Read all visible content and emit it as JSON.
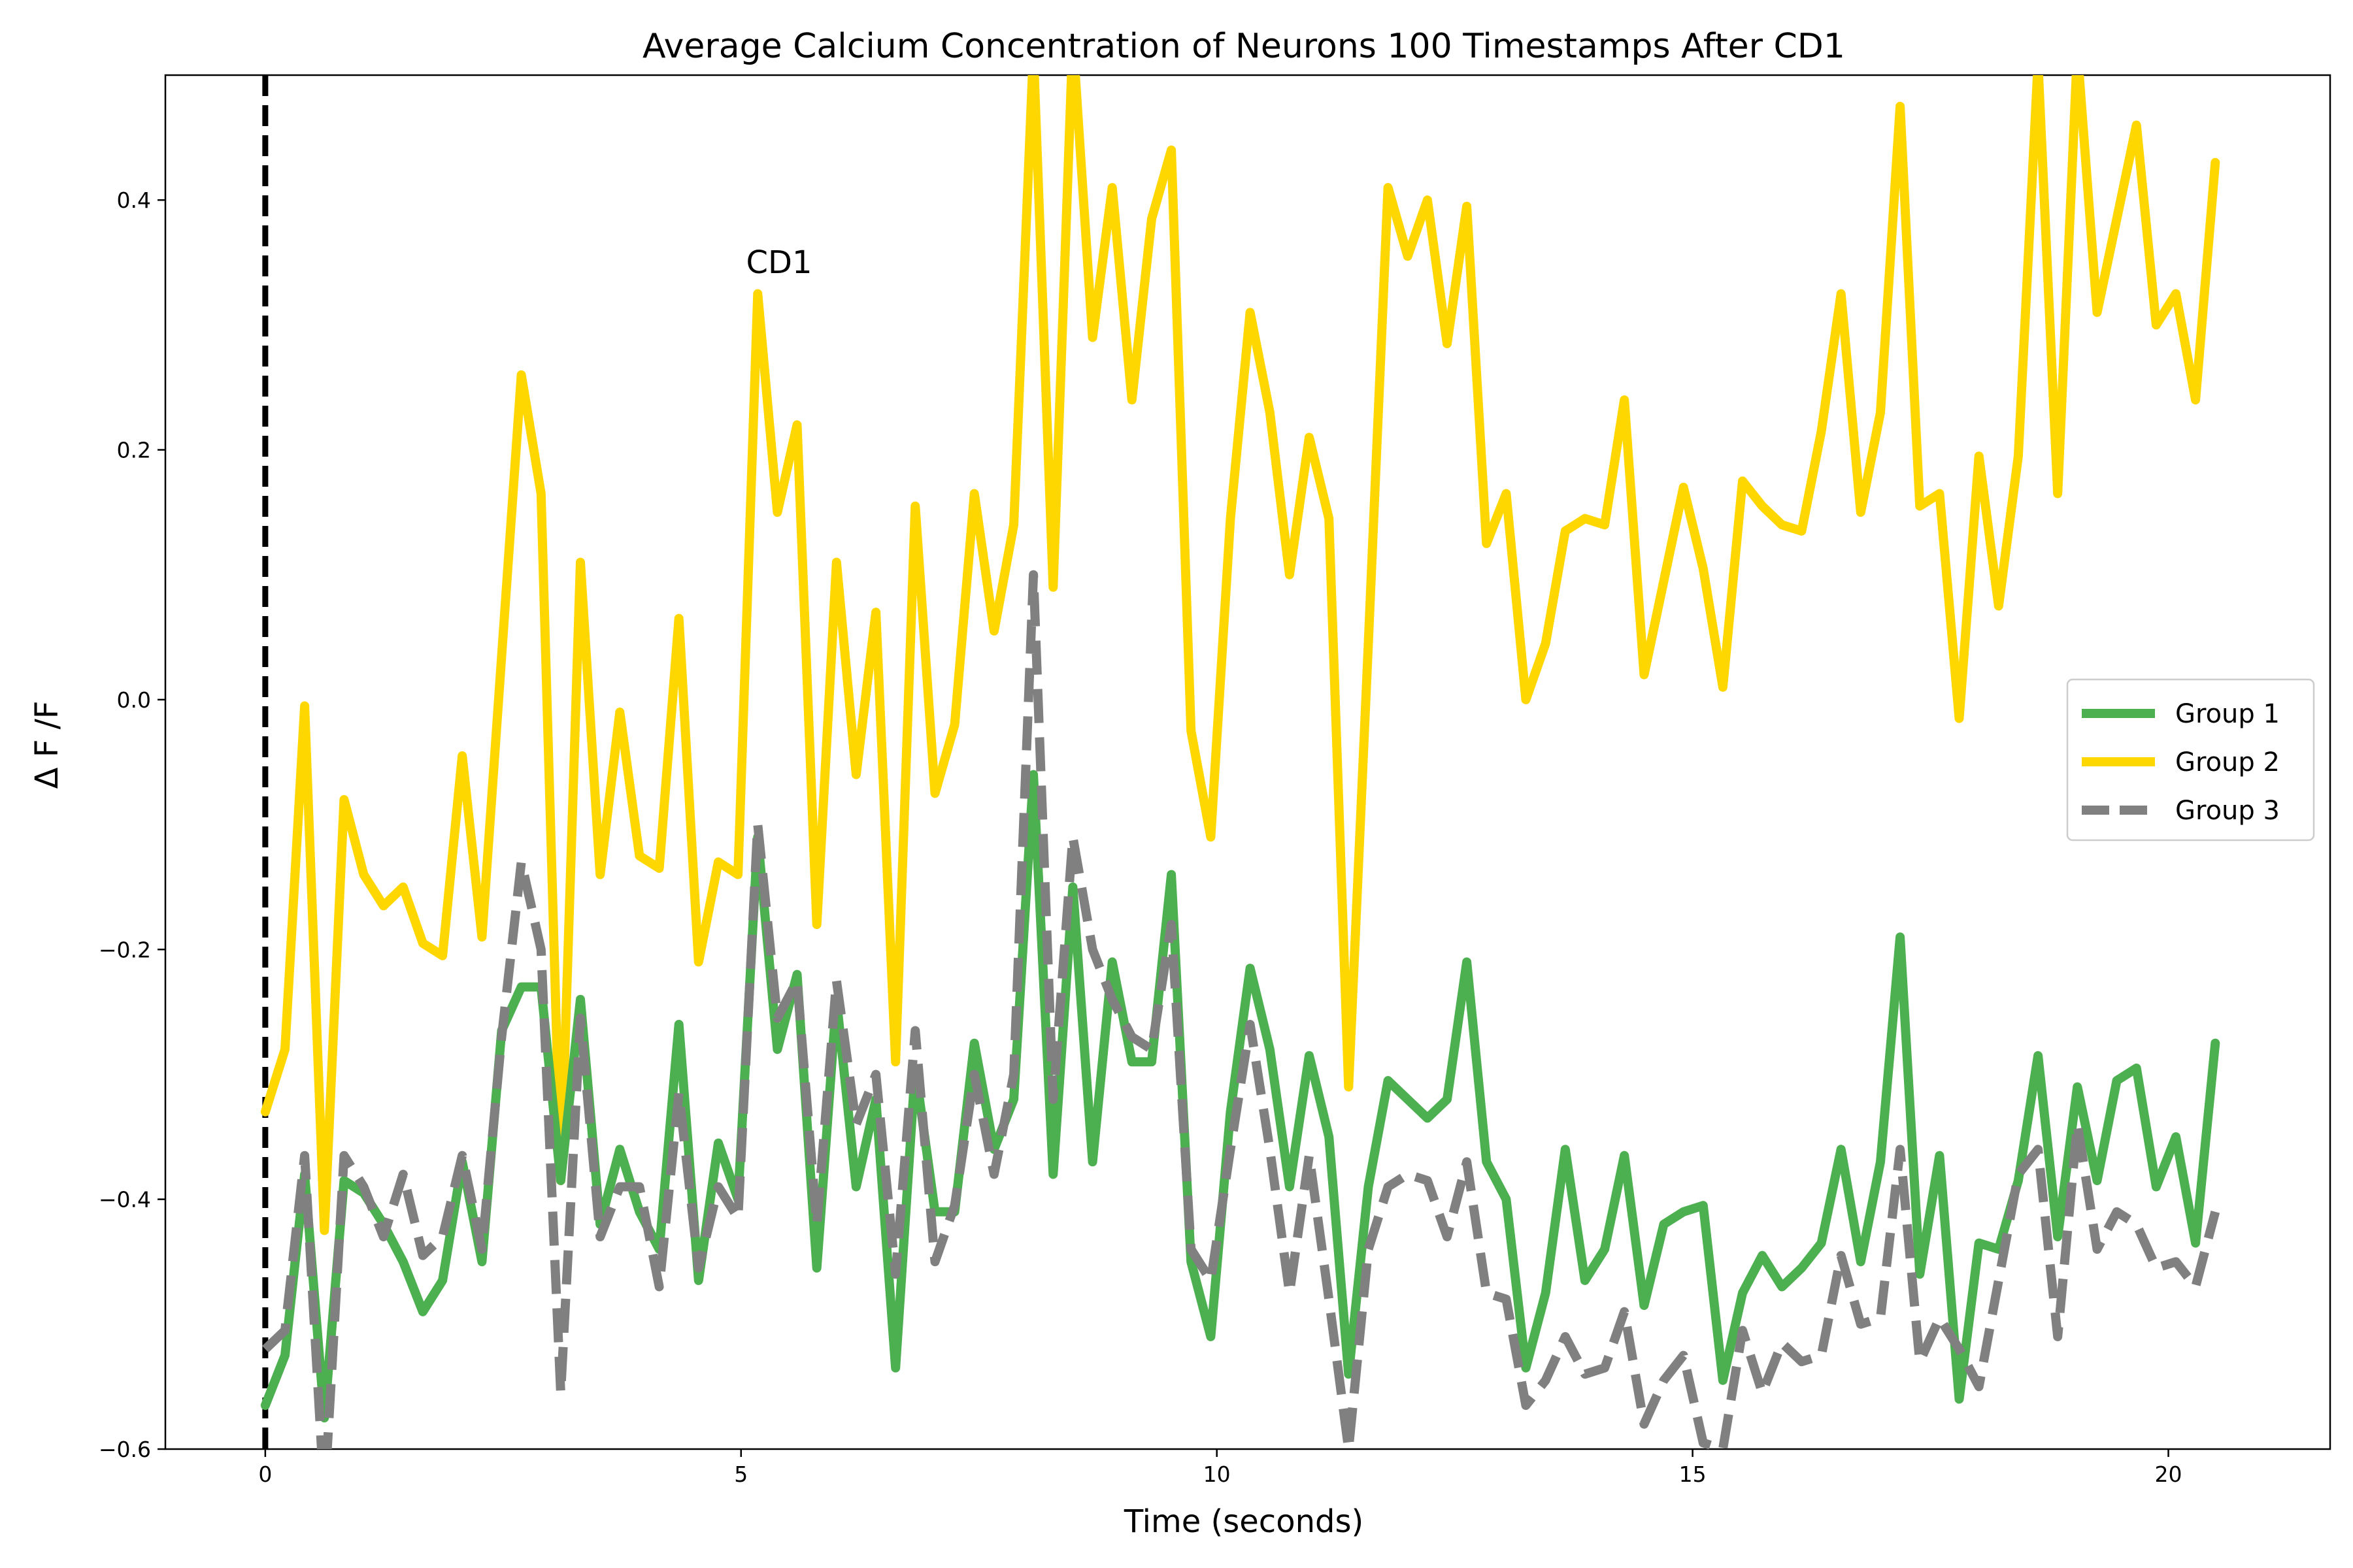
{
  "chart_data": {
    "type": "line",
    "title": "Average Calcium Concentration of Neurons 100 Timestamps After CD1",
    "xlabel": "Time (seconds)",
    "ylabel": "Δ F /F",
    "xlim": [
      -1.05,
      21.7
    ],
    "ylim": [
      -0.6,
      0.5
    ],
    "xticks": [
      0,
      5,
      10,
      15,
      20
    ],
    "xtick_labels": [
      "0",
      "5",
      "10",
      "15",
      "20"
    ],
    "yticks": [
      -0.6,
      -0.4,
      -0.2,
      0.0,
      0.2,
      0.4
    ],
    "ytick_labels": [
      "−0.6",
      "−0.4",
      "−0.2",
      "0.0",
      "0.2",
      "0.4"
    ],
    "grid": false,
    "legend_position": "center-right",
    "vline": {
      "x": 0,
      "style": "dashed",
      "color": "#000000"
    },
    "annotation": {
      "text": "CD1",
      "x": 5.4,
      "y": 0.35
    },
    "x": [
      0.0,
      0.207,
      0.414,
      0.621,
      0.828,
      1.035,
      1.242,
      1.449,
      1.656,
      1.863,
      2.07,
      2.277,
      2.484,
      2.691,
      2.898,
      3.105,
      3.312,
      3.519,
      3.726,
      3.933,
      4.14,
      4.347,
      4.554,
      4.761,
      4.968,
      5.175,
      5.382,
      5.589,
      5.796,
      6.003,
      6.21,
      6.417,
      6.624,
      6.831,
      7.038,
      7.245,
      7.452,
      7.659,
      7.866,
      8.073,
      8.28,
      8.487,
      8.694,
      8.901,
      9.108,
      9.315,
      9.522,
      9.729,
      9.936,
      10.143,
      10.35,
      10.557,
      10.764,
      10.971,
      11.178,
      11.385,
      11.592,
      11.799,
      12.006,
      12.213,
      12.42,
      12.627,
      12.834,
      13.041,
      13.248,
      13.455,
      13.662,
      13.869,
      14.076,
      14.283,
      14.49,
      14.697,
      14.904,
      15.111,
      15.318,
      15.525,
      15.732,
      15.939,
      16.146,
      16.353,
      16.56,
      16.767,
      16.974,
      17.181,
      17.388,
      17.595,
      17.802,
      18.009,
      18.216,
      18.423,
      18.63,
      18.837,
      19.044,
      19.251,
      19.458,
      19.665,
      19.872,
      20.079,
      20.286,
      20.493
    ],
    "series": [
      {
        "name": "Group 1",
        "color": "#4caf50",
        "style": "solid",
        "values": [
          -0.565,
          -0.525,
          -0.38,
          -0.575,
          -0.385,
          -0.395,
          -0.42,
          -0.45,
          -0.49,
          -0.465,
          -0.37,
          -0.45,
          -0.265,
          -0.23,
          -0.23,
          -0.385,
          -0.24,
          -0.42,
          -0.36,
          -0.41,
          -0.44,
          -0.26,
          -0.465,
          -0.355,
          -0.4,
          -0.11,
          -0.28,
          -0.22,
          -0.455,
          -0.24,
          -0.39,
          -0.32,
          -0.535,
          -0.295,
          -0.41,
          -0.41,
          -0.275,
          -0.36,
          -0.32,
          -0.06,
          -0.38,
          -0.15,
          -0.37,
          -0.21,
          -0.29,
          -0.29,
          -0.14,
          -0.45,
          -0.51,
          -0.33,
          -0.215,
          -0.28,
          -0.39,
          -0.285,
          -0.35,
          -0.54,
          -0.39,
          -0.305,
          -0.32,
          -0.335,
          -0.32,
          -0.21,
          -0.37,
          -0.4,
          -0.535,
          -0.475,
          -0.36,
          -0.465,
          -0.44,
          -0.365,
          -0.485,
          -0.42,
          -0.41,
          -0.405,
          -0.545,
          -0.475,
          -0.445,
          -0.47,
          -0.455,
          -0.435,
          -0.36,
          -0.45,
          -0.37,
          -0.19,
          -0.46,
          -0.365,
          -0.56,
          -0.435,
          -0.44,
          -0.385,
          -0.285,
          -0.43,
          -0.31,
          -0.385,
          -0.305,
          -0.295,
          -0.39,
          -0.35,
          -0.435,
          -0.275
        ]
      },
      {
        "name": "Group 2",
        "color": "#ffd700",
        "style": "solid",
        "values": [
          -0.33,
          -0.28,
          -0.005,
          -0.425,
          -0.08,
          -0.14,
          -0.165,
          -0.15,
          -0.195,
          -0.205,
          -0.045,
          -0.19,
          0.035,
          0.26,
          0.165,
          -0.385,
          0.11,
          -0.14,
          -0.01,
          -0.125,
          -0.135,
          0.065,
          -0.21,
          -0.13,
          -0.14,
          0.325,
          0.15,
          0.22,
          -0.18,
          0.11,
          -0.06,
          0.07,
          -0.29,
          0.155,
          -0.075,
          -0.02,
          0.165,
          0.055,
          0.14,
          0.52,
          0.09,
          0.53,
          0.29,
          0.41,
          0.24,
          0.385,
          0.44,
          -0.025,
          -0.11,
          0.145,
          0.31,
          0.23,
          0.1,
          0.21,
          0.145,
          -0.31,
          0.045,
          0.41,
          0.355,
          0.4,
          0.285,
          0.395,
          0.125,
          0.165,
          0.0,
          0.045,
          0.135,
          0.145,
          0.14,
          0.24,
          0.02,
          0.095,
          0.17,
          0.105,
          0.01,
          0.175,
          0.155,
          0.14,
          0.135,
          0.215,
          0.325,
          0.15,
          0.23,
          0.475,
          0.155,
          0.165,
          -0.015,
          0.195,
          0.075,
          0.195,
          0.51,
          0.165,
          0.52,
          0.31,
          0.385,
          0.46,
          0.3,
          0.325,
          0.24,
          0.43
        ]
      },
      {
        "name": "Group 3",
        "color": "#808080",
        "style": "dashed",
        "values": [
          -0.52,
          -0.505,
          -0.365,
          -0.64,
          -0.365,
          -0.39,
          -0.43,
          -0.38,
          -0.445,
          -0.43,
          -0.365,
          -0.44,
          -0.27,
          -0.13,
          -0.2,
          -0.555,
          -0.255,
          -0.43,
          -0.39,
          -0.39,
          -0.47,
          -0.315,
          -0.455,
          -0.39,
          -0.415,
          -0.1,
          -0.255,
          -0.225,
          -0.42,
          -0.225,
          -0.34,
          -0.3,
          -0.46,
          -0.265,
          -0.45,
          -0.405,
          -0.3,
          -0.38,
          -0.3,
          0.1,
          -0.32,
          -0.11,
          -0.2,
          -0.24,
          -0.27,
          -0.28,
          -0.18,
          -0.44,
          -0.465,
          -0.36,
          -0.26,
          -0.36,
          -0.475,
          -0.365,
          -0.48,
          -0.6,
          -0.44,
          -0.39,
          -0.38,
          -0.385,
          -0.43,
          -0.37,
          -0.475,
          -0.48,
          -0.565,
          -0.545,
          -0.51,
          -0.54,
          -0.535,
          -0.49,
          -0.58,
          -0.545,
          -0.525,
          -0.595,
          -0.6,
          -0.505,
          -0.555,
          -0.515,
          -0.53,
          -0.525,
          -0.445,
          -0.5,
          -0.495,
          -0.36,
          -0.53,
          -0.495,
          -0.52,
          -0.55,
          -0.465,
          -0.38,
          -0.36,
          -0.51,
          -0.34,
          -0.44,
          -0.41,
          -0.42,
          -0.455,
          -0.45,
          -0.47,
          -0.41
        ]
      }
    ]
  }
}
